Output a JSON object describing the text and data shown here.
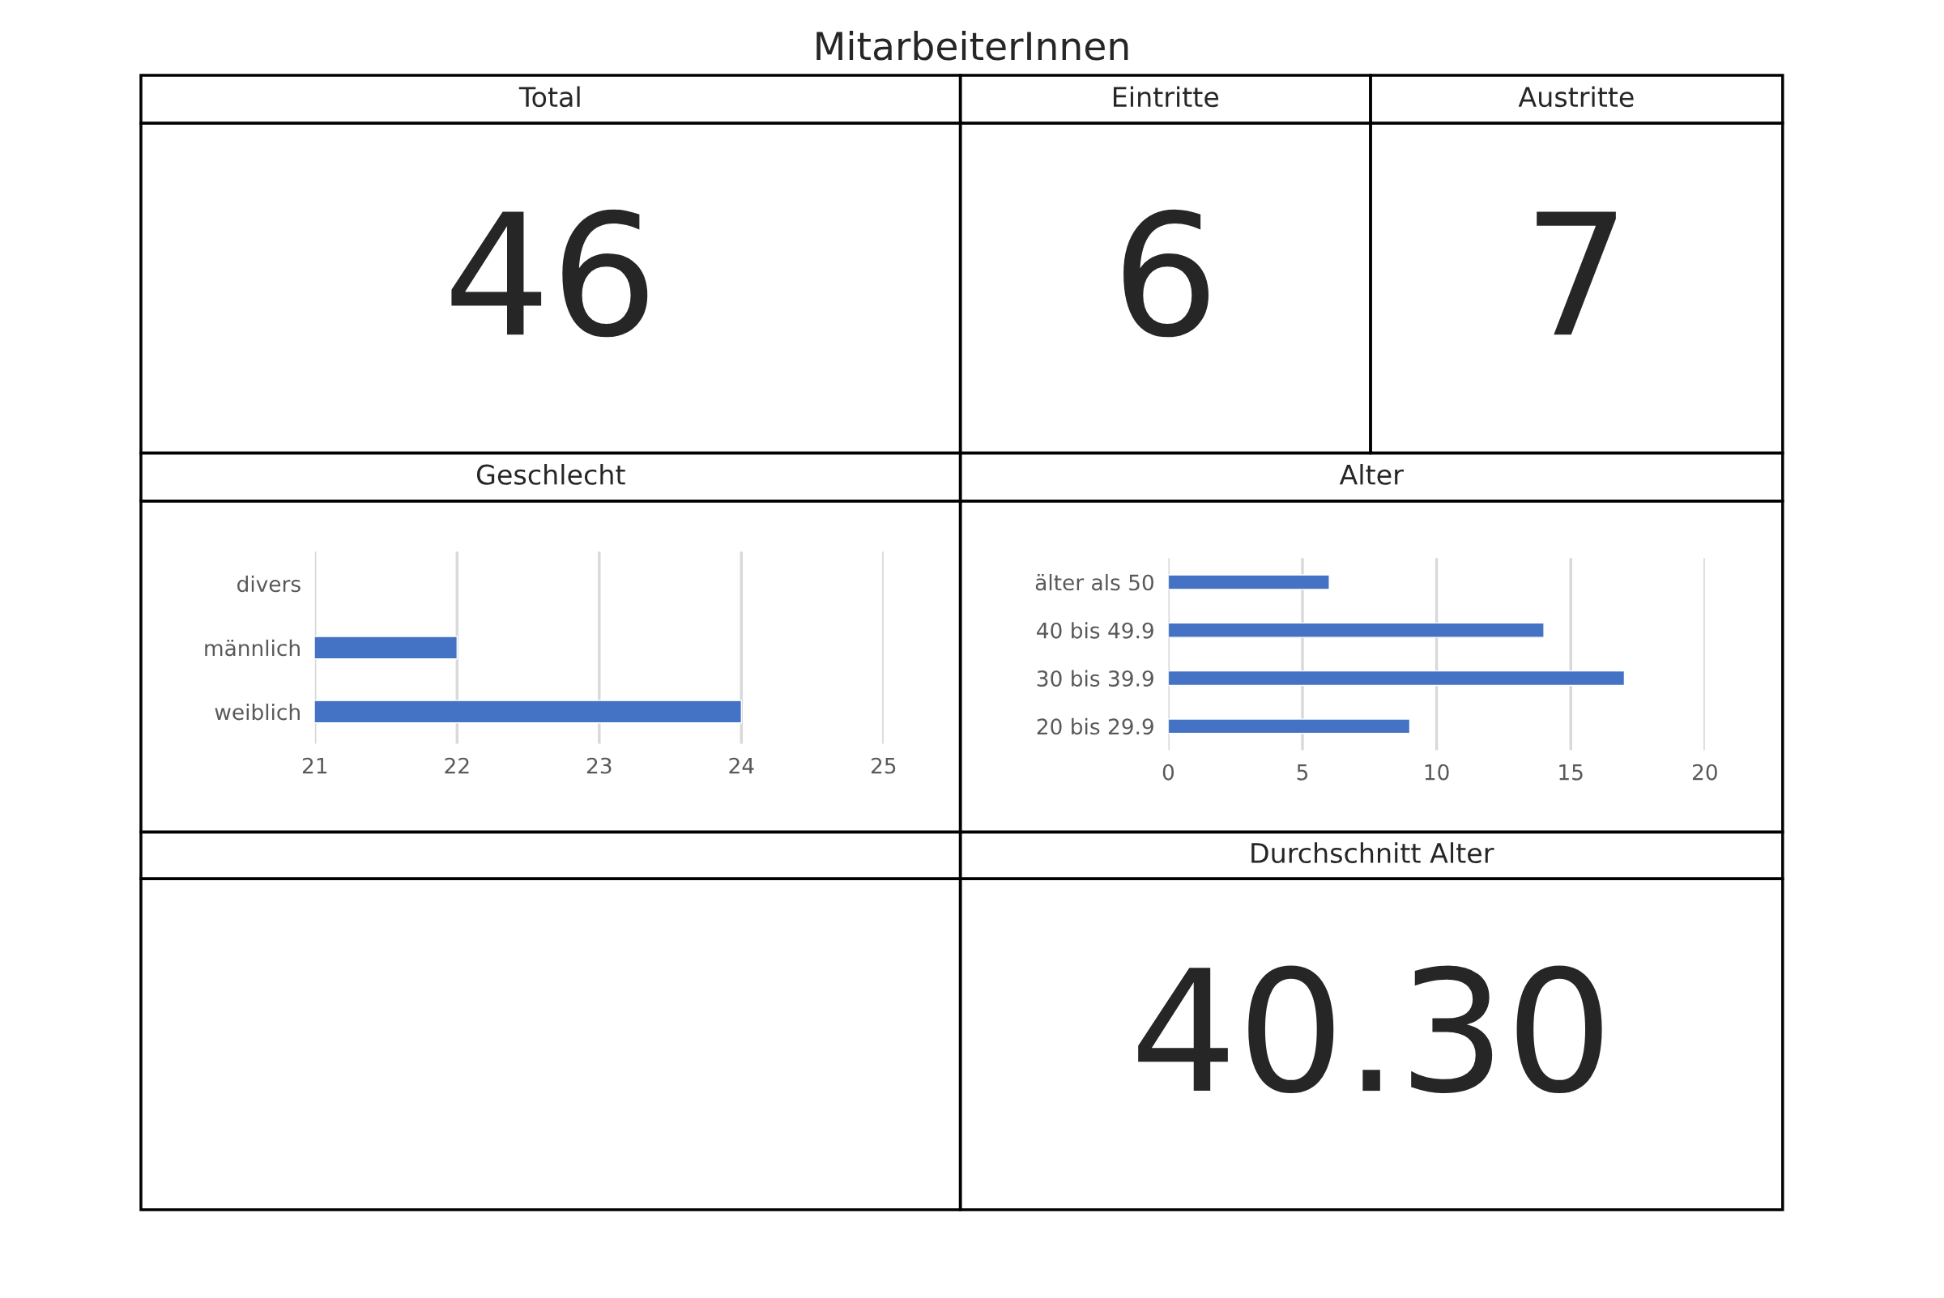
{
  "chart_data": [
    {
      "type": "other",
      "title": "MitarbeiterInnen"
    },
    {
      "type": "other",
      "title": "Total",
      "annotations": [
        "46"
      ]
    },
    {
      "type": "other",
      "title": "Eintritte",
      "annotations": [
        "6"
      ]
    },
    {
      "type": "other",
      "title": "Austritte",
      "annotations": [
        "7"
      ]
    },
    {
      "type": "bar",
      "title": "Geschlecht",
      "orientation": "horizontal",
      "categories": [
        "divers",
        "männlich",
        "weiblich"
      ],
      "values": [
        null,
        22,
        24
      ],
      "color": "#4472c4",
      "xlim": [
        21,
        25
      ],
      "xticks": [
        21,
        22,
        23,
        24,
        25
      ],
      "grid": "x"
    },
    {
      "type": "bar",
      "title": "Alter",
      "orientation": "horizontal",
      "categories": [
        "älter als 50",
        "40 bis 49.9",
        "30 bis 39.9",
        "20 bis 29.9"
      ],
      "values": [
        6,
        14,
        17,
        9
      ],
      "color": "#4472c4",
      "xlim": [
        0,
        20
      ],
      "xticks": [
        0,
        5,
        10,
        15,
        20
      ],
      "grid": "x"
    },
    {
      "type": "other"
    },
    {
      "type": "other",
      "title": "Durchschnitt Alter",
      "annotations": [
        "40.30"
      ]
    }
  ]
}
